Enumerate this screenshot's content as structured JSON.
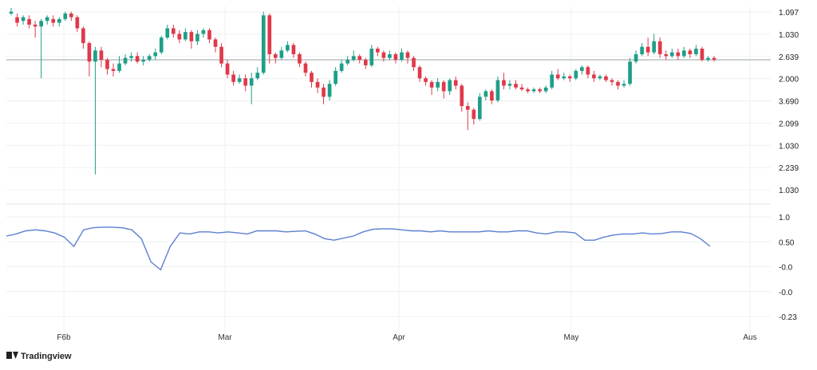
{
  "colors": {
    "up": "#1f9e89",
    "down": "#e0394a",
    "indicator": "#5b7fcf",
    "grid": "#eef0f3",
    "hline": "#9aa0a6"
  },
  "logo": {
    "text": "Tradingview",
    "icon": "tv-logo-icon"
  },
  "chart_data": [
    {
      "type": "candlestick",
      "price_axis_labels": [
        "1.097",
        "1.030",
        "2.639",
        "2.000",
        "3.690",
        "2.099",
        "1.030",
        "2.239",
        "1.030"
      ],
      "x_tick_labels": [
        "F6b",
        "Mar",
        "Apr",
        "May",
        "Aus"
      ],
      "reference_line": 0.72,
      "y_range": [
        0,
        1
      ],
      "candles": [
        [
          0.97,
          0.98,
          1.0,
          0.96
        ],
        [
          0.95,
          0.92,
          0.97,
          0.9
        ],
        [
          0.93,
          0.95,
          0.96,
          0.91
        ],
        [
          0.94,
          0.91,
          0.96,
          0.89
        ],
        [
          0.91,
          0.9,
          0.93,
          0.84
        ],
        [
          0.9,
          0.93,
          0.94,
          0.62
        ],
        [
          0.93,
          0.95,
          0.96,
          0.91
        ],
        [
          0.94,
          0.92,
          0.96,
          0.9
        ],
        [
          0.92,
          0.94,
          0.95,
          0.9
        ],
        [
          0.94,
          0.97,
          0.98,
          0.93
        ],
        [
          0.97,
          0.95,
          0.98,
          0.93
        ],
        [
          0.95,
          0.89,
          0.96,
          0.87
        ],
        [
          0.89,
          0.81,
          0.9,
          0.78
        ],
        [
          0.81,
          0.71,
          0.82,
          0.63
        ],
        [
          0.71,
          0.77,
          0.79,
          0.1
        ],
        [
          0.77,
          0.72,
          0.79,
          0.68
        ],
        [
          0.72,
          0.67,
          0.73,
          0.64
        ],
        [
          0.67,
          0.66,
          0.7,
          0.63
        ],
        [
          0.66,
          0.7,
          0.74,
          0.65
        ],
        [
          0.7,
          0.73,
          0.75,
          0.69
        ],
        [
          0.73,
          0.74,
          0.76,
          0.71
        ],
        [
          0.74,
          0.71,
          0.76,
          0.7
        ],
        [
          0.71,
          0.72,
          0.74,
          0.69
        ],
        [
          0.72,
          0.74,
          0.75,
          0.71
        ],
        [
          0.74,
          0.76,
          0.78,
          0.72
        ],
        [
          0.76,
          0.84,
          0.85,
          0.75
        ],
        [
          0.84,
          0.89,
          0.91,
          0.83
        ],
        [
          0.89,
          0.86,
          0.91,
          0.84
        ],
        [
          0.86,
          0.83,
          0.88,
          0.81
        ],
        [
          0.83,
          0.87,
          0.89,
          0.82
        ],
        [
          0.87,
          0.82,
          0.88,
          0.78
        ],
        [
          0.82,
          0.86,
          0.88,
          0.8
        ],
        [
          0.86,
          0.88,
          0.89,
          0.84
        ],
        [
          0.88,
          0.83,
          0.89,
          0.81
        ],
        [
          0.83,
          0.79,
          0.84,
          0.76
        ],
        [
          0.79,
          0.7,
          0.81,
          0.68
        ],
        [
          0.7,
          0.64,
          0.72,
          0.62
        ],
        [
          0.64,
          0.6,
          0.66,
          0.58
        ],
        [
          0.6,
          0.62,
          0.64,
          0.59
        ],
        [
          0.62,
          0.58,
          0.64,
          0.55
        ],
        [
          0.58,
          0.62,
          0.65,
          0.48
        ],
        [
          0.62,
          0.65,
          0.68,
          0.61
        ],
        [
          0.65,
          0.96,
          0.98,
          0.64
        ],
        [
          0.96,
          0.75,
          0.97,
          0.7
        ],
        [
          0.75,
          0.73,
          0.76,
          0.7
        ],
        [
          0.73,
          0.77,
          0.79,
          0.72
        ],
        [
          0.77,
          0.8,
          0.82,
          0.76
        ],
        [
          0.8,
          0.75,
          0.81,
          0.73
        ],
        [
          0.75,
          0.7,
          0.76,
          0.68
        ],
        [
          0.7,
          0.65,
          0.71,
          0.63
        ],
        [
          0.65,
          0.6,
          0.66,
          0.57
        ],
        [
          0.6,
          0.57,
          0.62,
          0.54
        ],
        [
          0.57,
          0.52,
          0.59,
          0.48
        ],
        [
          0.52,
          0.59,
          0.61,
          0.5
        ],
        [
          0.59,
          0.66,
          0.68,
          0.58
        ],
        [
          0.66,
          0.7,
          0.72,
          0.65
        ],
        [
          0.7,
          0.72,
          0.74,
          0.69
        ],
        [
          0.72,
          0.74,
          0.77,
          0.71
        ],
        [
          0.74,
          0.72,
          0.75,
          0.7
        ],
        [
          0.72,
          0.69,
          0.73,
          0.67
        ],
        [
          0.69,
          0.78,
          0.8,
          0.68
        ],
        [
          0.78,
          0.76,
          0.79,
          0.74
        ],
        [
          0.76,
          0.73,
          0.77,
          0.71
        ],
        [
          0.73,
          0.75,
          0.77,
          0.72
        ],
        [
          0.75,
          0.72,
          0.76,
          0.7
        ],
        [
          0.72,
          0.76,
          0.78,
          0.71
        ],
        [
          0.76,
          0.73,
          0.77,
          0.7
        ],
        [
          0.73,
          0.68,
          0.74,
          0.66
        ],
        [
          0.68,
          0.62,
          0.69,
          0.6
        ],
        [
          0.62,
          0.6,
          0.63,
          0.58
        ],
        [
          0.6,
          0.57,
          0.61,
          0.53
        ],
        [
          0.57,
          0.6,
          0.62,
          0.55
        ],
        [
          0.6,
          0.55,
          0.61,
          0.51
        ],
        [
          0.55,
          0.61,
          0.62,
          0.53
        ],
        [
          0.61,
          0.58,
          0.63,
          0.56
        ],
        [
          0.58,
          0.47,
          0.59,
          0.44
        ],
        [
          0.47,
          0.45,
          0.49,
          0.34
        ],
        [
          0.45,
          0.4,
          0.46,
          0.37
        ],
        [
          0.4,
          0.52,
          0.54,
          0.39
        ],
        [
          0.52,
          0.55,
          0.56,
          0.5
        ],
        [
          0.55,
          0.5,
          0.56,
          0.48
        ],
        [
          0.5,
          0.61,
          0.63,
          0.49
        ],
        [
          0.61,
          0.58,
          0.65,
          0.56
        ],
        [
          0.58,
          0.59,
          0.61,
          0.56
        ],
        [
          0.59,
          0.57,
          0.61,
          0.56
        ],
        [
          0.57,
          0.56,
          0.59,
          0.55
        ],
        [
          0.56,
          0.55,
          0.57,
          0.54
        ],
        [
          0.55,
          0.56,
          0.57,
          0.54
        ],
        [
          0.56,
          0.55,
          0.57,
          0.54
        ],
        [
          0.55,
          0.57,
          0.58,
          0.54
        ],
        [
          0.57,
          0.64,
          0.66,
          0.56
        ],
        [
          0.64,
          0.62,
          0.67,
          0.61
        ],
        [
          0.62,
          0.63,
          0.65,
          0.61
        ],
        [
          0.63,
          0.62,
          0.64,
          0.6
        ],
        [
          0.62,
          0.66,
          0.67,
          0.61
        ],
        [
          0.66,
          0.68,
          0.69,
          0.64
        ],
        [
          0.68,
          0.64,
          0.69,
          0.62
        ],
        [
          0.64,
          0.62,
          0.66,
          0.6
        ],
        [
          0.62,
          0.63,
          0.64,
          0.61
        ],
        [
          0.63,
          0.61,
          0.64,
          0.6
        ],
        [
          0.61,
          0.6,
          0.62,
          0.58
        ],
        [
          0.6,
          0.58,
          0.61,
          0.56
        ],
        [
          0.58,
          0.59,
          0.61,
          0.57
        ],
        [
          0.59,
          0.71,
          0.73,
          0.58
        ],
        [
          0.71,
          0.75,
          0.77,
          0.7
        ],
        [
          0.75,
          0.79,
          0.81,
          0.74
        ],
        [
          0.79,
          0.76,
          0.84,
          0.74
        ],
        [
          0.76,
          0.82,
          0.86,
          0.75
        ],
        [
          0.82,
          0.75,
          0.84,
          0.73
        ],
        [
          0.75,
          0.74,
          0.77,
          0.72
        ],
        [
          0.74,
          0.76,
          0.78,
          0.73
        ],
        [
          0.76,
          0.74,
          0.78,
          0.72
        ],
        [
          0.74,
          0.77,
          0.79,
          0.73
        ],
        [
          0.77,
          0.75,
          0.78,
          0.73
        ],
        [
          0.75,
          0.78,
          0.8,
          0.74
        ],
        [
          0.78,
          0.72,
          0.79,
          0.71
        ],
        [
          0.72,
          0.73,
          0.74,
          0.71
        ],
        [
          0.73,
          0.72,
          0.74,
          0.71
        ]
      ]
    },
    {
      "type": "line",
      "name": "",
      "y_axis_labels": [
        "1.0",
        "0.50",
        "-0.0",
        "-0.0",
        "-0.23"
      ],
      "y_range": [
        -1,
        1
      ],
      "values": [
        0.6,
        0.64,
        0.7,
        0.72,
        0.7,
        0.66,
        0.58,
        0.4,
        0.72,
        0.76,
        0.77,
        0.77,
        0.76,
        0.72,
        0.55,
        0.1,
        -0.05,
        0.4,
        0.66,
        0.64,
        0.68,
        0.68,
        0.66,
        0.68,
        0.66,
        0.64,
        0.7,
        0.7,
        0.7,
        0.68,
        0.69,
        0.7,
        0.64,
        0.55,
        0.52,
        0.56,
        0.6,
        0.68,
        0.73,
        0.74,
        0.74,
        0.72,
        0.7,
        0.7,
        0.68,
        0.7,
        0.68,
        0.68,
        0.68,
        0.68,
        0.7,
        0.68,
        0.68,
        0.7,
        0.7,
        0.66,
        0.64,
        0.68,
        0.68,
        0.66,
        0.52,
        0.52,
        0.58,
        0.62,
        0.64,
        0.64,
        0.66,
        0.64,
        0.65,
        0.68,
        0.68,
        0.65,
        0.55,
        0.4
      ]
    }
  ]
}
